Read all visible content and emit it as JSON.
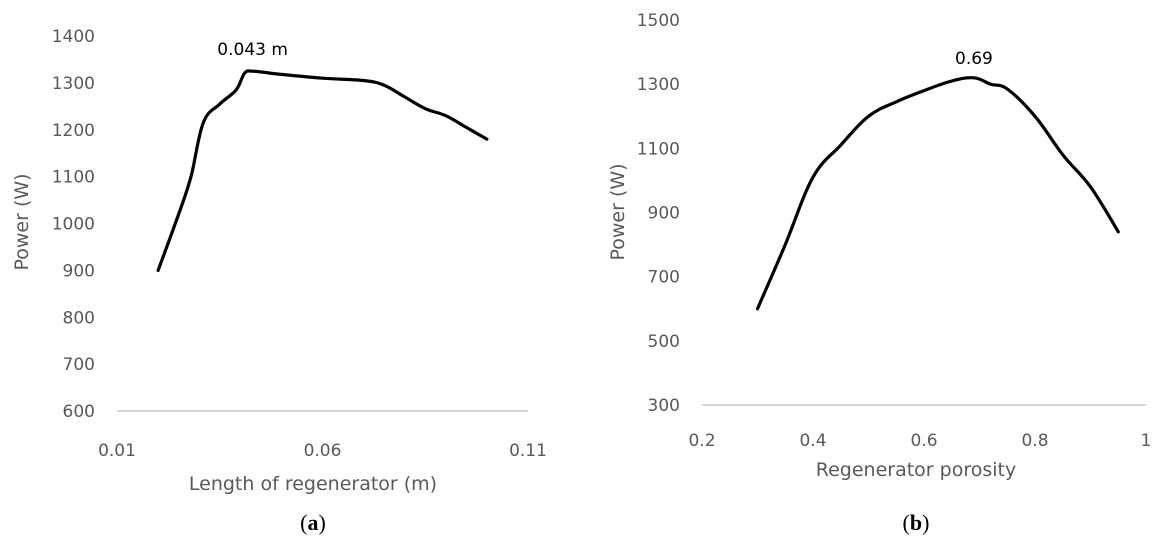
{
  "chart_data": [
    {
      "type": "line",
      "caption": {
        "open": "(",
        "letter": "a",
        "close": ")"
      },
      "xlabel": "Length of regenerator (m)",
      "ylabel": "Power (W)",
      "xlim": [
        0.01,
        0.11
      ],
      "ylim": [
        600,
        1400
      ],
      "x_ticks": [
        "0.01",
        "0.06",
        "0.11"
      ],
      "y_ticks": [
        "600",
        "700",
        "800",
        "900",
        "1000",
        "1100",
        "1200",
        "1300",
        "1400"
      ],
      "grid": false,
      "annotation": {
        "text": "0.043 m",
        "x": 0.043,
        "y": 1325
      },
      "series": [
        {
          "x": [
            0.02,
            0.025,
            0.028,
            0.031,
            0.035,
            0.039,
            0.041,
            0.043,
            0.05,
            0.06,
            0.07,
            0.075,
            0.08,
            0.085,
            0.09,
            0.095,
            0.1
          ],
          "y": [
            900,
            1020,
            1100,
            1215,
            1255,
            1285,
            1320,
            1325,
            1318,
            1310,
            1305,
            1295,
            1270,
            1245,
            1230,
            1205,
            1180
          ]
        }
      ]
    },
    {
      "type": "line",
      "caption": {
        "open": "(",
        "letter": "b",
        "close": ")"
      },
      "xlabel": "Regenerator porosity",
      "ylabel": "Power (W)",
      "xlim": [
        0.2,
        1.0
      ],
      "ylim": [
        300,
        1500
      ],
      "x_ticks": [
        "0.2",
        "0.4",
        "0.6",
        "0.8",
        "1"
      ],
      "y_ticks": [
        "300",
        "500",
        "700",
        "900",
        "1100",
        "1300",
        "1500"
      ],
      "grid": false,
      "annotation": {
        "text": "0.69",
        "x": 0.69,
        "y": 1320
      },
      "series": [
        {
          "x": [
            0.3,
            0.35,
            0.4,
            0.45,
            0.5,
            0.55,
            0.6,
            0.65,
            0.69,
            0.72,
            0.75,
            0.8,
            0.85,
            0.9,
            0.95
          ],
          "y": [
            600,
            800,
            1010,
            1110,
            1200,
            1245,
            1280,
            1310,
            1320,
            1300,
            1285,
            1200,
            1080,
            980,
            840
          ]
        }
      ]
    }
  ]
}
